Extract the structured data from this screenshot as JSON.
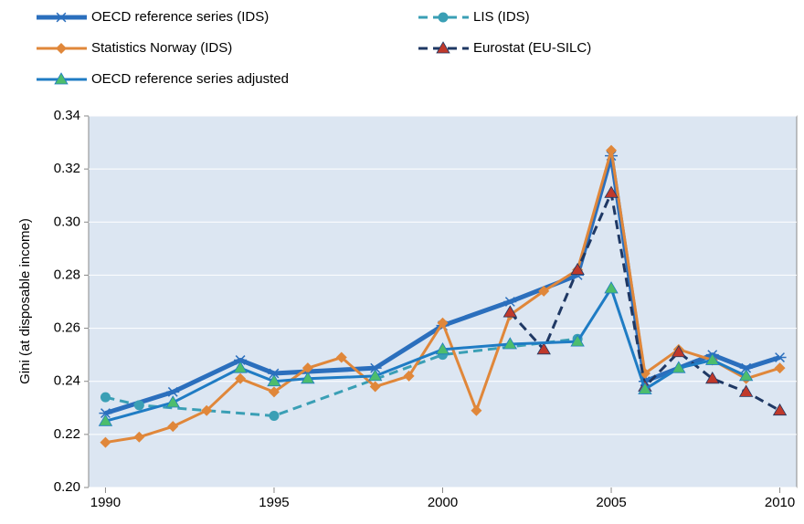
{
  "chart_data": {
    "type": "line",
    "y_label": "Gini (at disposable income)",
    "xlim": [
      1989.5,
      2010.5
    ],
    "xticks": [
      1990,
      1995,
      2000,
      2005,
      2010
    ],
    "ylim": [
      0.2,
      0.34
    ],
    "yticks": [
      {
        "value": 0.2,
        "label": "0.20"
      },
      {
        "value": 0.22,
        "label": "0.22"
      },
      {
        "value": 0.24,
        "label": "0.24"
      },
      {
        "value": 0.26,
        "label": "0.26"
      },
      {
        "value": 0.28,
        "label": "0.28"
      },
      {
        "value": 0.3,
        "label": "0.30"
      },
      {
        "value": 0.32,
        "label": "0.32"
      },
      {
        "value": 0.34,
        "label": "0.34"
      }
    ],
    "grid": true,
    "background": "#dce6f2",
    "series": [
      {
        "name": "OECD reference series (IDS)",
        "color": "#2b6fbd",
        "width": 5,
        "dash": false,
        "marker": "star",
        "marker_color": "#2b6fbd",
        "x": [
          1990,
          1992,
          1994,
          1995,
          1998,
          2000,
          2002,
          2004,
          2005,
          2006,
          2008,
          2009,
          2010
        ],
        "values": [
          0.228,
          0.236,
          0.248,
          0.243,
          0.245,
          0.261,
          0.27,
          0.28,
          0.325,
          0.24,
          0.25,
          0.245,
          0.249
        ]
      },
      {
        "name": "LIS (IDS)",
        "color": "#3a9fb5",
        "width": 3,
        "dash": true,
        "marker": "circle",
        "marker_color": "#3a9fb5",
        "x": [
          1990,
          1991,
          1995,
          2000,
          2004
        ],
        "values": [
          0.234,
          0.231,
          0.227,
          0.25,
          0.256
        ]
      },
      {
        "name": "Statistics Norway (IDS)",
        "color": "#e0873a",
        "width": 3,
        "dash": false,
        "marker": "diamond",
        "marker_color": "#e0873a",
        "x": [
          1990,
          1991,
          1992,
          1993,
          1994,
          1995,
          1996,
          1997,
          1998,
          1999,
          2000,
          2001,
          2002,
          2003,
          2004,
          2005,
          2006,
          2007,
          2008,
          2009,
          2010
        ],
        "values": [
          0.217,
          0.219,
          0.223,
          0.229,
          0.241,
          0.236,
          0.245,
          0.249,
          0.238,
          0.242,
          0.262,
          0.229,
          0.265,
          0.274,
          0.282,
          0.327,
          0.243,
          0.252,
          0.248,
          0.241,
          0.245
        ]
      },
      {
        "name": "Eurostat (EU-SILC)",
        "color": "#1f3864",
        "width": 3,
        "dash": true,
        "marker": "triangle",
        "marker_color": "#c0392b",
        "x": [
          2002,
          2003,
          2004,
          2005,
          2006,
          2007,
          2008,
          2009,
          2010
        ],
        "values": [
          0.266,
          0.252,
          0.282,
          0.311,
          0.238,
          0.251,
          0.241,
          0.236,
          0.229
        ]
      },
      {
        "name": "OECD reference series adjusted",
        "color": "#1f7cc4",
        "width": 3,
        "dash": false,
        "marker": "triangle",
        "marker_color": "#4dbd6d",
        "x": [
          1990,
          1992,
          1994,
          1995,
          1996,
          1998,
          2000,
          2002,
          2004,
          2005,
          2006,
          2007,
          2008,
          2009
        ],
        "values": [
          0.225,
          0.232,
          0.245,
          0.24,
          0.241,
          0.242,
          0.252,
          0.254,
          0.255,
          0.275,
          0.237,
          0.245,
          0.248,
          0.242
        ]
      }
    ]
  }
}
